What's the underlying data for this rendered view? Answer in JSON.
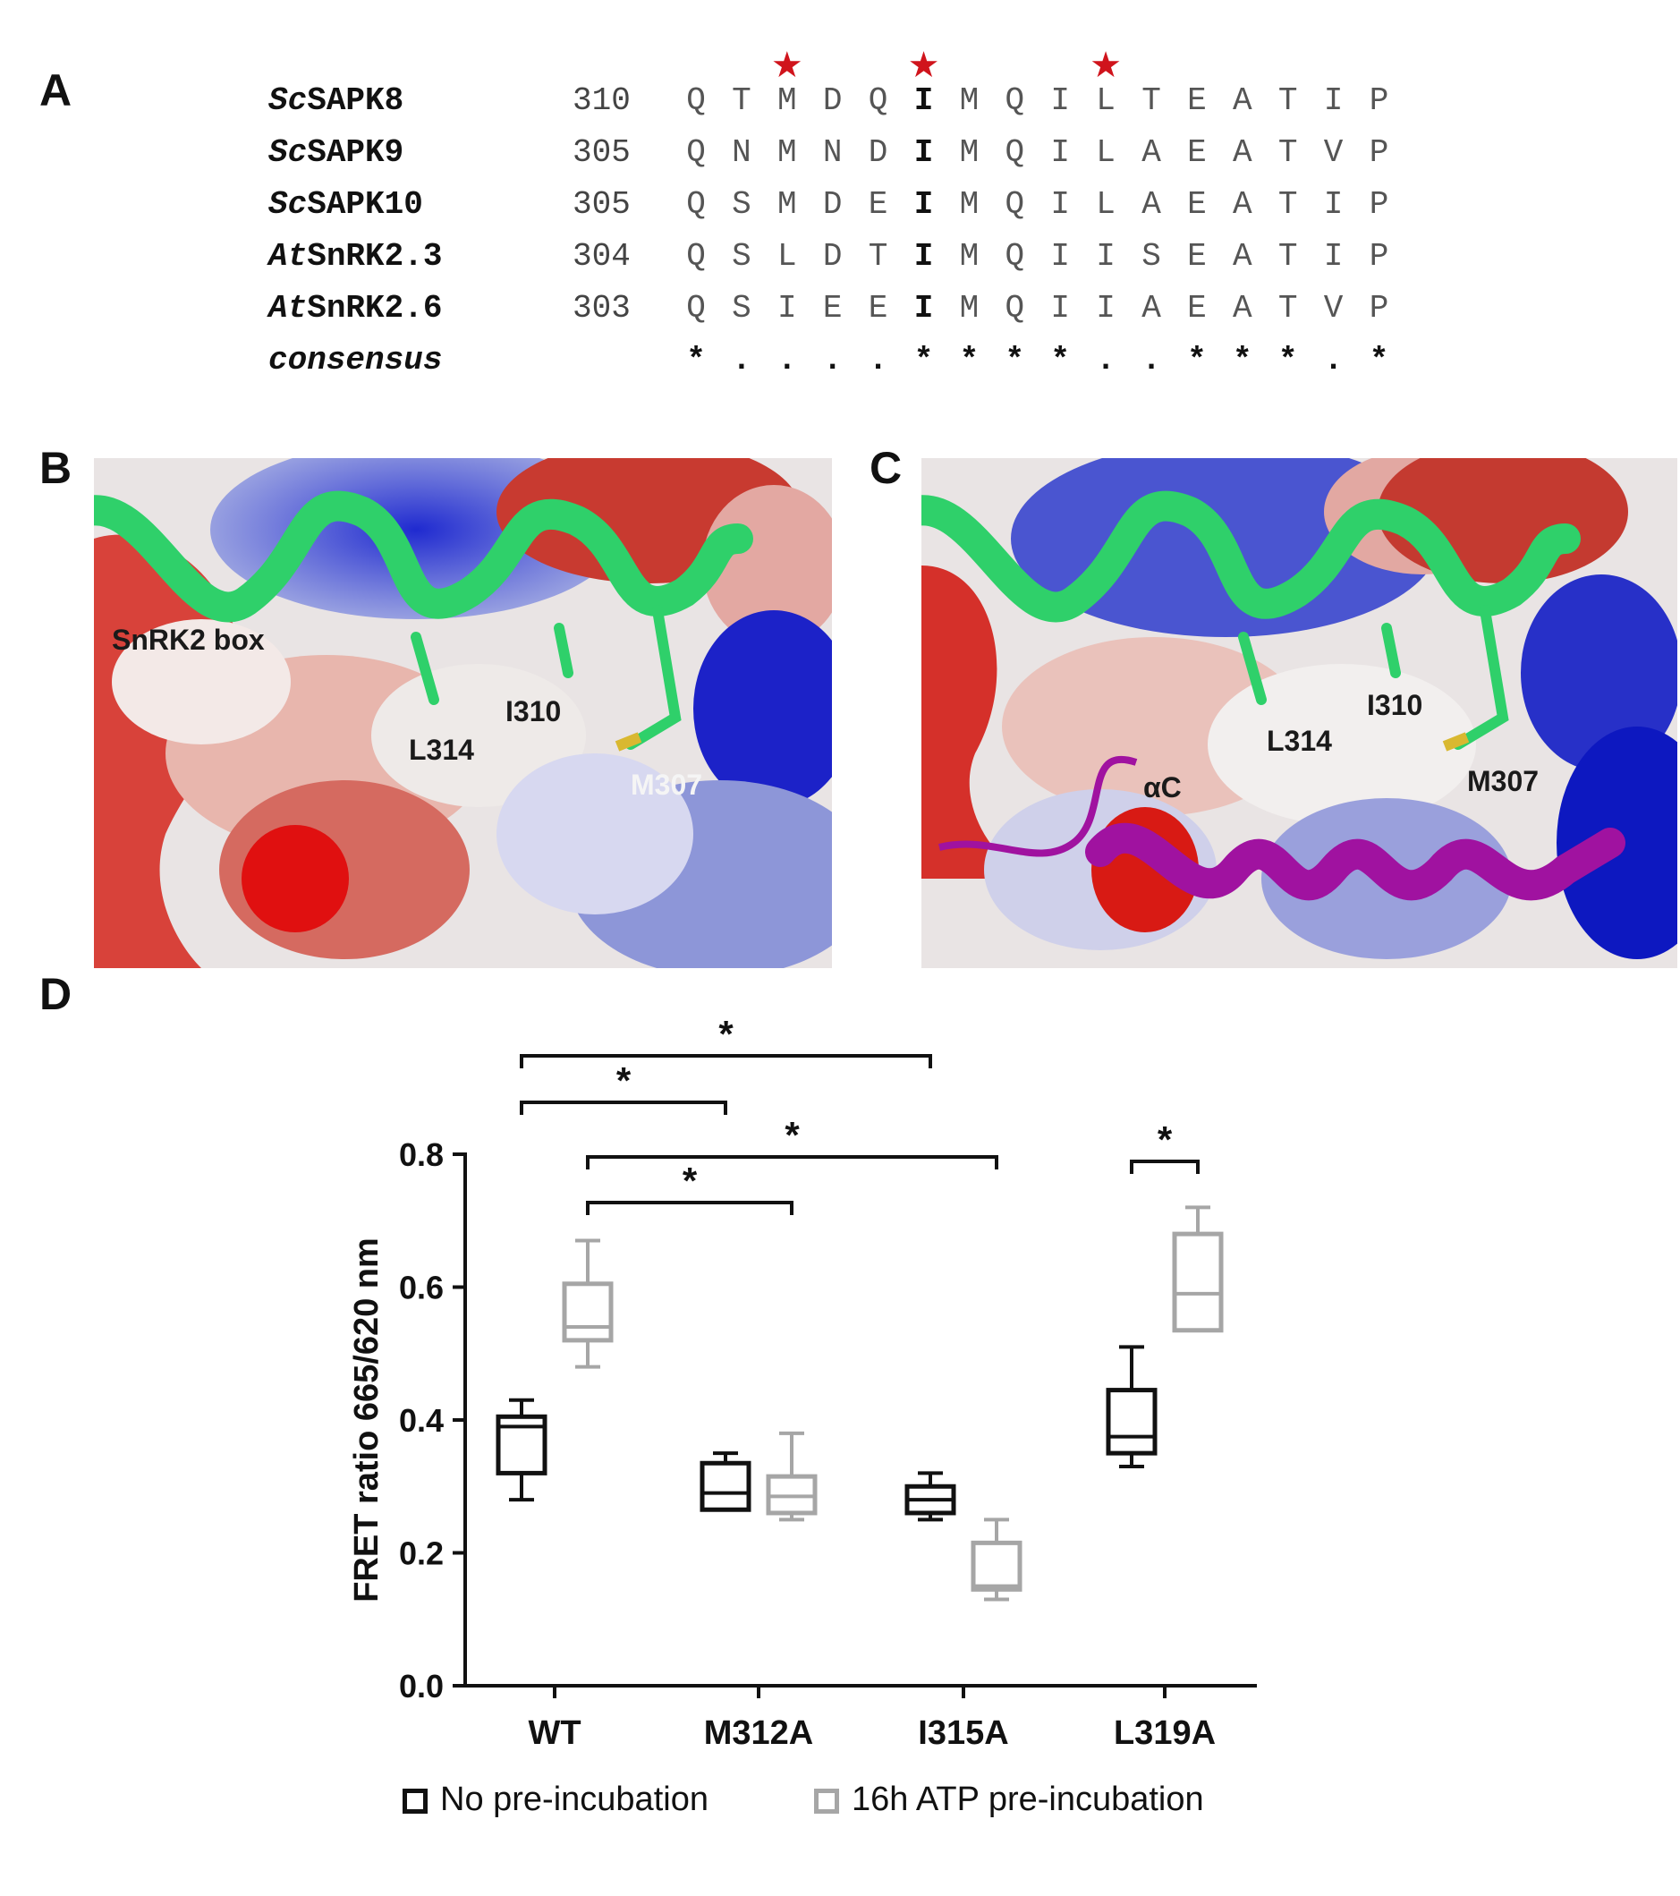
{
  "panels": {
    "a": "A",
    "b": "B",
    "c": "C",
    "d": "D"
  },
  "alignment": {
    "rows": [
      {
        "prefix": "Sc",
        "name": "SAPK8",
        "start": "310",
        "residues": [
          "Q",
          "T",
          "M",
          "D",
          "Q",
          "I",
          "M",
          "Q",
          "I",
          "L",
          "T",
          "E",
          "A",
          "T",
          "I",
          "P"
        ]
      },
      {
        "prefix": "Sc",
        "name": "SAPK9",
        "start": "305",
        "residues": [
          "Q",
          "N",
          "M",
          "N",
          "D",
          "I",
          "M",
          "Q",
          "I",
          "L",
          "A",
          "E",
          "A",
          "T",
          "V",
          "P"
        ]
      },
      {
        "prefix": "Sc",
        "name": "SAPK10",
        "start": "305",
        "residues": [
          "Q",
          "S",
          "M",
          "D",
          "E",
          "I",
          "M",
          "Q",
          "I",
          "L",
          "A",
          "E",
          "A",
          "T",
          "I",
          "P"
        ]
      },
      {
        "prefix": "At",
        "name": "SnRK2.3",
        "start": "304",
        "residues": [
          "Q",
          "S",
          "L",
          "D",
          "T",
          "I",
          "M",
          "Q",
          "I",
          "I",
          "S",
          "E",
          "A",
          "T",
          "I",
          "P"
        ]
      },
      {
        "prefix": "At",
        "name": "SnRK2.6",
        "start": "303",
        "residues": [
          "Q",
          "S",
          "I",
          "E",
          "E",
          "I",
          "M",
          "Q",
          "I",
          "I",
          "A",
          "E",
          "A",
          "T",
          "V",
          "P"
        ]
      }
    ],
    "consensus_label": "consensus",
    "consensus": [
      "*",
      ".",
      ".",
      ".",
      ".",
      "*",
      "*",
      "*",
      "*",
      ".",
      ".",
      "*",
      "*",
      "*",
      ".",
      "*"
    ],
    "starred_columns": [
      2,
      5,
      9
    ],
    "bold_column": 5,
    "star_symbol": "★",
    "star_color": "#d0141c"
  },
  "structure_b": {
    "labels": [
      "SnRK2 box",
      "L314",
      "I310",
      "M307"
    ]
  },
  "structure_c": {
    "labels": [
      "αC",
      "L314",
      "I310",
      "M307"
    ]
  },
  "chart_data": {
    "type": "box",
    "ylabel": "FRET ratio 665/620 nm",
    "xlabel": "",
    "ylim": [
      0.0,
      0.8
    ],
    "yticks": [
      "0.0",
      "0.2",
      "0.4",
      "0.6",
      "0.8"
    ],
    "categories": [
      "WT",
      "M312A",
      "I315A",
      "L319A"
    ],
    "series": [
      {
        "name": "No pre-incubation",
        "color": "#111111",
        "boxes": [
          {
            "min": 0.28,
            "q1": 0.32,
            "median": 0.39,
            "q3": 0.405,
            "max": 0.43
          },
          {
            "min": 0.265,
            "q1": 0.265,
            "median": 0.29,
            "q3": 0.335,
            "max": 0.35
          },
          {
            "min": 0.25,
            "q1": 0.26,
            "median": 0.28,
            "q3": 0.3,
            "max": 0.32
          },
          {
            "min": 0.33,
            "q1": 0.35,
            "median": 0.375,
            "q3": 0.445,
            "max": 0.51
          }
        ]
      },
      {
        "name": "16h ATP pre-incubation",
        "color": "#a6a6a6",
        "boxes": [
          {
            "min": 0.48,
            "q1": 0.52,
            "median": 0.54,
            "q3": 0.605,
            "max": 0.67
          },
          {
            "min": 0.25,
            "q1": 0.26,
            "median": 0.285,
            "q3": 0.315,
            "max": 0.38
          },
          {
            "min": 0.13,
            "q1": 0.145,
            "median": 0.15,
            "q3": 0.215,
            "max": 0.25
          },
          {
            "min": 0.535,
            "q1": 0.535,
            "median": 0.59,
            "q3": 0.68,
            "max": 0.72
          }
        ]
      }
    ],
    "significance": [
      {
        "from": [
          0,
          0
        ],
        "to": [
          2,
          0
        ],
        "label": "*"
      },
      {
        "from": [
          0,
          0
        ],
        "to": [
          1,
          0
        ],
        "label": "*"
      },
      {
        "from": [
          0,
          1
        ],
        "to": [
          2,
          1
        ],
        "label": "*"
      },
      {
        "from": [
          0,
          1
        ],
        "to": [
          1,
          1
        ],
        "label": "*"
      },
      {
        "from": [
          3,
          0
        ],
        "to": [
          3,
          1
        ],
        "label": "*"
      }
    ],
    "legend_position": "bottom"
  }
}
